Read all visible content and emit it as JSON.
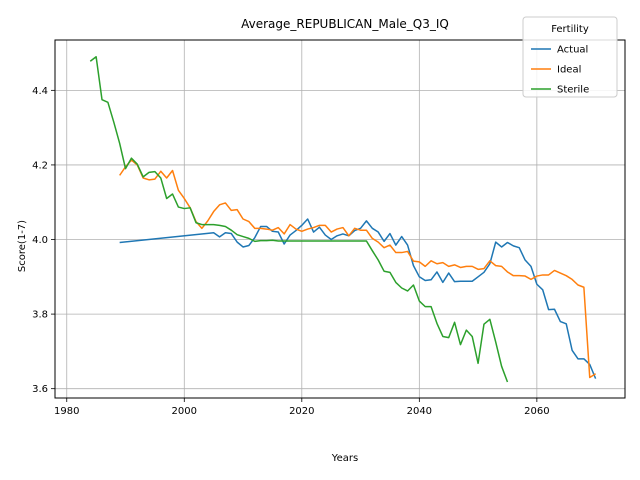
{
  "chart_data": {
    "type": "line",
    "title": "Average_REPUBLICAN_Male_Q3_IQ",
    "xlabel": "Years",
    "ylabel": "Score(1-7)",
    "xlim": [
      1978,
      2075
    ],
    "ylim": [
      3.575,
      4.535
    ],
    "xticks": [
      1980,
      2000,
      2020,
      2040,
      2060
    ],
    "yticks": [
      3.6,
      3.8,
      4.0,
      4.2,
      4.4
    ],
    "xtick_labels": [
      "1980",
      "2000",
      "2020",
      "2040",
      "2060"
    ],
    "ytick_labels": [
      "3.6",
      "3.8",
      "4.0",
      "4.2",
      "4.4"
    ],
    "grid": true,
    "legend": {
      "title": "Fertility",
      "placement": "top-right"
    },
    "series": [
      {
        "name": "Actual",
        "color": "#1f77b4",
        "x": [
          1989,
          2005,
          2006,
          2007,
          2008,
          2009,
          2010,
          2011,
          2012,
          2013,
          2014,
          2015,
          2016,
          2017,
          2018,
          2019,
          2020,
          2021,
          2022,
          2023,
          2024,
          2025,
          2026,
          2027,
          2028,
          2029,
          2030,
          2031,
          2032,
          2033,
          2034,
          2035,
          2036,
          2037,
          2038,
          2039,
          2040,
          2041,
          2042,
          2043,
          2044,
          2045,
          2046,
          2047,
          2048,
          2049,
          2050,
          2051,
          2052,
          2053,
          2054,
          2055,
          2056,
          2057,
          2058,
          2059,
          2060,
          2061,
          2062,
          2063,
          2064,
          2065,
          2066,
          2067,
          2068,
          2069,
          2070
        ],
        "y": [
          3.992,
          4.018,
          4.007,
          4.018,
          4.016,
          3.993,
          3.98,
          3.984,
          4.005,
          4.035,
          4.035,
          4.022,
          4.02,
          3.988,
          4.012,
          4.024,
          4.038,
          4.055,
          4.02,
          4.033,
          4.012,
          4.0,
          4.01,
          4.015,
          4.01,
          4.024,
          4.03,
          4.05,
          4.03,
          4.02,
          3.995,
          4.016,
          3.985,
          4.008,
          3.985,
          3.93,
          3.9,
          3.89,
          3.892,
          3.913,
          3.885,
          3.91,
          3.887,
          3.888,
          3.888,
          3.888,
          3.9,
          3.912,
          3.935,
          3.993,
          3.98,
          3.992,
          3.983,
          3.978,
          3.945,
          3.928,
          3.88,
          3.865,
          3.812,
          3.813,
          3.78,
          3.774,
          3.703,
          3.68,
          3.68,
          3.665,
          3.627
        ]
      },
      {
        "name": "Ideal",
        "color": "#ff7f0e",
        "x": [
          1989,
          1990,
          1991,
          1992,
          1993,
          1994,
          1995,
          1996,
          1997,
          1998,
          1999,
          2000,
          2001,
          2002,
          2003,
          2004,
          2005,
          2006,
          2007,
          2008,
          2009,
          2010,
          2011,
          2012,
          2013,
          2014,
          2015,
          2016,
          2017,
          2018,
          2019,
          2020,
          2021,
          2022,
          2023,
          2024,
          2025,
          2026,
          2027,
          2028,
          2029,
          2030,
          2031,
          2032,
          2033,
          2034,
          2035,
          2036,
          2037,
          2038,
          2039,
          2040,
          2041,
          2042,
          2043,
          2044,
          2045,
          2046,
          2047,
          2048,
          2049,
          2050,
          2051,
          2052,
          2053,
          2054,
          2055,
          2056,
          2057,
          2058,
          2059,
          2060,
          2061,
          2062,
          2063,
          2064,
          2065,
          2066,
          2067,
          2068,
          2069,
          2070
        ],
        "y": [
          4.172,
          4.195,
          4.213,
          4.2,
          4.165,
          4.16,
          4.162,
          4.183,
          4.165,
          4.185,
          4.132,
          4.11,
          4.085,
          4.048,
          4.03,
          4.05,
          4.075,
          4.093,
          4.098,
          4.078,
          4.08,
          4.055,
          4.048,
          4.03,
          4.03,
          4.028,
          4.025,
          4.032,
          4.015,
          4.04,
          4.028,
          4.022,
          4.028,
          4.032,
          4.038,
          4.038,
          4.02,
          4.028,
          4.032,
          4.01,
          4.03,
          4.025,
          4.025,
          4.003,
          3.993,
          3.978,
          3.985,
          3.965,
          3.965,
          3.968,
          3.942,
          3.94,
          3.928,
          3.943,
          3.935,
          3.938,
          3.928,
          3.932,
          3.925,
          3.928,
          3.928,
          3.92,
          3.922,
          3.943,
          3.93,
          3.928,
          3.913,
          3.903,
          3.903,
          3.902,
          3.893,
          3.902,
          3.905,
          3.905,
          3.917,
          3.91,
          3.903,
          3.893,
          3.878,
          3.872,
          3.63,
          3.64
        ]
      },
      {
        "name": "Sterile",
        "color": "#2ca02c",
        "x": [
          1984,
          1985,
          1986,
          1987,
          1988,
          1989,
          1990,
          1991,
          1992,
          1993,
          1994,
          1995,
          1996,
          1997,
          1998,
          1999,
          2000,
          2001,
          2002,
          2003,
          2004,
          2005,
          2006,
          2007,
          2008,
          2009,
          2010,
          2011,
          2012,
          2013,
          2014,
          2015,
          2016,
          2017,
          2018,
          2019,
          2020,
          2021,
          2022,
          2023,
          2024,
          2025,
          2026,
          2027,
          2028,
          2029,
          2030,
          2031,
          2032,
          2033,
          2034,
          2035,
          2036,
          2037,
          2038,
          2039,
          2040,
          2041,
          2042,
          2043,
          2044,
          2045,
          2046,
          2047,
          2048,
          2049,
          2050,
          2051,
          2052,
          2053,
          2054,
          2055
        ],
        "y": [
          4.478,
          4.49,
          4.375,
          4.368,
          4.315,
          4.258,
          4.19,
          4.218,
          4.202,
          4.168,
          4.18,
          4.182,
          4.165,
          4.11,
          4.122,
          4.087,
          4.083,
          4.085,
          4.045,
          4.04,
          4.04,
          4.04,
          4.038,
          4.035,
          4.025,
          4.013,
          4.008,
          4.003,
          3.995,
          3.997,
          3.997,
          3.998,
          3.996,
          3.996,
          3.996,
          3.996,
          3.996,
          3.996,
          3.996,
          3.996,
          3.996,
          3.996,
          3.996,
          3.996,
          3.996,
          3.996,
          3.996,
          3.996,
          3.97,
          3.945,
          3.915,
          3.912,
          3.885,
          3.87,
          3.862,
          3.878,
          3.835,
          3.82,
          3.82,
          3.775,
          3.74,
          3.737,
          3.778,
          3.718,
          3.757,
          3.74,
          3.668,
          3.773,
          3.786,
          3.725,
          3.66,
          3.618
        ]
      }
    ]
  }
}
